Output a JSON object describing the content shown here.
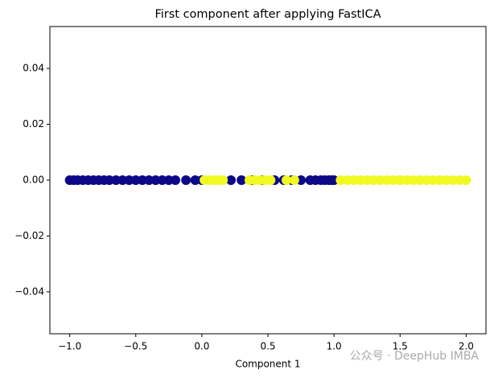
{
  "chart_data": {
    "type": "scatter",
    "title": "First component after applying FastICA",
    "x_label": "Component 1",
    "watermark": "公众号 · DeepHub IMBA",
    "series": [
      {
        "color": "#0d0887",
        "x": [
          -1.0,
          -0.97,
          -0.94,
          -0.9,
          -0.86,
          -0.82,
          -0.78,
          -0.74,
          -0.7,
          -0.65,
          -0.6,
          -0.55,
          -0.5,
          -0.45,
          -0.4,
          -0.35,
          -0.3,
          -0.25,
          -0.2,
          -0.12,
          -0.05,
          0.0,
          0.22,
          0.3,
          0.38,
          0.45,
          0.55,
          0.62,
          0.68,
          0.75,
          0.82,
          0.86,
          0.9,
          0.93,
          0.96,
          0.98,
          1.0
        ],
        "values": [
          0,
          0,
          0,
          0,
          0,
          0,
          0,
          0,
          0,
          0,
          0,
          0,
          0,
          0,
          0,
          0,
          0,
          0,
          0,
          0,
          0,
          0,
          0,
          0,
          0,
          0,
          0,
          0,
          0,
          0,
          0,
          0,
          0,
          0,
          0,
          0,
          0
        ]
      },
      {
        "color": "#f0f921",
        "x": [
          0.02,
          0.06,
          0.1,
          0.13,
          0.16,
          0.36,
          0.4,
          0.44,
          0.48,
          0.52,
          0.64,
          0.7,
          1.05,
          1.1,
          1.15,
          1.2,
          1.25,
          1.3,
          1.35,
          1.4,
          1.45,
          1.5,
          1.55,
          1.6,
          1.65,
          1.7,
          1.75,
          1.8,
          1.85,
          1.9,
          1.95,
          2.0
        ],
        "values": [
          0,
          0,
          0,
          0,
          0,
          0,
          0,
          0,
          0,
          0,
          0,
          0,
          0,
          0,
          0,
          0,
          0,
          0,
          0,
          0,
          0,
          0,
          0,
          0,
          0,
          0,
          0,
          0,
          0,
          0,
          0,
          0
        ]
      }
    ],
    "xlim": [
      -1.15,
      2.15
    ],
    "xticks": [
      {
        "value": -1.0,
        "label": "−1.0"
      },
      {
        "value": -0.5,
        "label": "−0.5"
      },
      {
        "value": 0.0,
        "label": "0.0"
      },
      0.5,
      {
        "value": 1.0,
        "label": "1.0"
      },
      1.5,
      {
        "value": 2.0,
        "label": "2.0"
      }
    ],
    "ylim": [
      -0.055,
      0.055
    ],
    "yticks": [
      {
        "value": -0.04,
        "label": "−0.04"
      },
      {
        "value": -0.02,
        "label": "−0.02"
      },
      {
        "value": 0.0,
        "label": "0.00"
      },
      {
        "value": 0.02,
        "label": "0.02"
      },
      {
        "value": 0.04,
        "label": "0.04"
      }
    ],
    "grid": false
  }
}
